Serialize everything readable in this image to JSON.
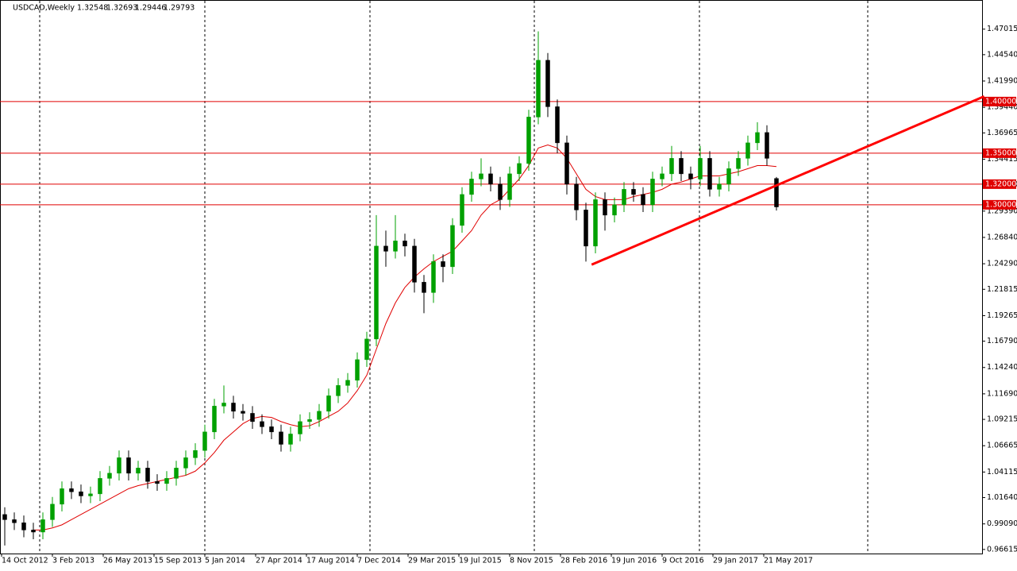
{
  "chart_data": {
    "type": "candlestick",
    "symbol": "USDCAD,Weekly",
    "xlabels": [
      "14 Oct 2012",
      "3 Feb 2013",
      "26 May 2013",
      "15 Sep 2013",
      "5 Jan 2014",
      "27 Apr 2014",
      "17 Aug 2014",
      "7 Dec 2014",
      "29 Mar 2015",
      "19 Jul 2015",
      "8 Nov 2015",
      "28 Feb 2016",
      "19 Jun 2016",
      "9 Oct 2016",
      "29 Jan 2017",
      "21 May 2017"
    ],
    "open": [
      1.0,
      0.995,
      0.992,
      0.985,
      0.983,
      0.995,
      1.01,
      1.025,
      1.022,
      1.018,
      1.02,
      1.035,
      1.04,
      1.055,
      1.04,
      1.045,
      1.032,
      1.03,
      1.035,
      1.045,
      1.055,
      1.062,
      1.08,
      1.105,
      1.108,
      1.1,
      1.098,
      1.09,
      1.085,
      1.08,
      1.068,
      1.078,
      1.09,
      1.092,
      1.1,
      1.115,
      1.125,
      1.13,
      1.15,
      1.17,
      1.26,
      1.255,
      1.265,
      1.26,
      1.225,
      1.215,
      1.245,
      1.24,
      1.28,
      1.31,
      1.325,
      1.33,
      1.32,
      1.305,
      1.33,
      1.34,
      1.385,
      1.44,
      1.395,
      1.36,
      1.32,
      1.295,
      1.26,
      1.305,
      1.29,
      1.3,
      1.315,
      1.31,
      1.3,
      1.325,
      1.33,
      1.345,
      1.33,
      1.325,
      1.345,
      1.315,
      1.32,
      1.335,
      1.345,
      1.36,
      1.37,
      1.32548
    ],
    "high": [
      1.007,
      1.002,
      0.999,
      0.992,
      1.002,
      1.017,
      1.032,
      1.032,
      1.029,
      1.027,
      1.042,
      1.047,
      1.062,
      1.062,
      1.052,
      1.052,
      1.039,
      1.042,
      1.052,
      1.062,
      1.069,
      1.087,
      1.112,
      1.125,
      1.115,
      1.107,
      1.105,
      1.097,
      1.092,
      1.087,
      1.085,
      1.097,
      1.099,
      1.107,
      1.122,
      1.132,
      1.137,
      1.157,
      1.177,
      1.29,
      1.275,
      1.29,
      1.272,
      1.267,
      1.232,
      1.252,
      1.252,
      1.287,
      1.317,
      1.332,
      1.345,
      1.337,
      1.327,
      1.337,
      1.347,
      1.392,
      1.468,
      1.447,
      1.402,
      1.367,
      1.327,
      1.302,
      1.312,
      1.312,
      1.307,
      1.322,
      1.322,
      1.317,
      1.332,
      1.337,
      1.357,
      1.352,
      1.337,
      1.357,
      1.352,
      1.327,
      1.342,
      1.352,
      1.367,
      1.38,
      1.377,
      1.32693
    ],
    "low": [
      0.97,
      0.985,
      0.978,
      0.976,
      0.976,
      0.988,
      1.003,
      1.015,
      1.011,
      1.011,
      1.013,
      1.028,
      1.033,
      1.033,
      1.033,
      1.025,
      1.023,
      1.023,
      1.028,
      1.038,
      1.048,
      1.055,
      1.073,
      1.098,
      1.093,
      1.091,
      1.083,
      1.078,
      1.073,
      1.061,
      1.061,
      1.071,
      1.083,
      1.085,
      1.093,
      1.108,
      1.118,
      1.123,
      1.143,
      1.163,
      1.24,
      1.248,
      1.25,
      1.215,
      1.195,
      1.205,
      1.225,
      1.233,
      1.273,
      1.303,
      1.318,
      1.313,
      1.295,
      1.298,
      1.323,
      1.333,
      1.378,
      1.385,
      1.35,
      1.31,
      1.285,
      1.245,
      1.253,
      1.275,
      1.283,
      1.293,
      1.303,
      1.293,
      1.293,
      1.318,
      1.323,
      1.323,
      1.315,
      1.318,
      1.308,
      1.308,
      1.313,
      1.328,
      1.338,
      1.353,
      1.338,
      1.29446
    ],
    "close": [
      0.995,
      0.992,
      0.985,
      0.983,
      0.995,
      1.01,
      1.025,
      1.022,
      1.018,
      1.02,
      1.035,
      1.04,
      1.055,
      1.04,
      1.045,
      1.032,
      1.03,
      1.035,
      1.045,
      1.055,
      1.062,
      1.08,
      1.105,
      1.108,
      1.1,
      1.098,
      1.09,
      1.085,
      1.08,
      1.068,
      1.078,
      1.09,
      1.092,
      1.1,
      1.115,
      1.125,
      1.13,
      1.15,
      1.17,
      1.26,
      1.255,
      1.265,
      1.26,
      1.225,
      1.215,
      1.245,
      1.24,
      1.28,
      1.31,
      1.325,
      1.33,
      1.32,
      1.305,
      1.33,
      1.34,
      1.385,
      1.44,
      1.395,
      1.36,
      1.32,
      1.295,
      1.26,
      1.305,
      1.29,
      1.3,
      1.315,
      1.31,
      1.3,
      1.325,
      1.33,
      1.345,
      1.33,
      1.325,
      1.345,
      1.315,
      1.32,
      1.335,
      1.345,
      1.36,
      1.37,
      1.345,
      1.29793
    ],
    "ma": [
      null,
      null,
      null,
      0.985,
      0.985,
      0.987,
      0.99,
      0.995,
      1.0,
      1.005,
      1.01,
      1.015,
      1.02,
      1.025,
      1.028,
      1.03,
      1.032,
      1.034,
      1.036,
      1.038,
      1.042,
      1.05,
      1.06,
      1.072,
      1.08,
      1.088,
      1.093,
      1.095,
      1.094,
      1.09,
      1.087,
      1.085,
      1.086,
      1.09,
      1.095,
      1.1,
      1.108,
      1.12,
      1.135,
      1.16,
      1.185,
      1.205,
      1.22,
      1.23,
      1.238,
      1.245,
      1.25,
      1.255,
      1.265,
      1.275,
      1.29,
      1.3,
      1.305,
      1.315,
      1.325,
      1.338,
      1.355,
      1.358,
      1.355,
      1.345,
      1.33,
      1.315,
      1.308,
      1.305,
      1.305,
      1.305,
      1.308,
      1.31,
      1.312,
      1.315,
      1.32,
      1.322,
      1.325,
      1.328,
      1.328,
      1.328,
      1.33,
      1.332,
      1.335,
      1.338,
      1.338,
      1.337
    ],
    "up_color": "#00a000",
    "down_color": "#000000",
    "ma_color": "#e00000",
    "trendline": {
      "x": [
        61.6,
        102.8
      ],
      "y": [
        1.242,
        1.405
      ],
      "color": "#ff0000"
    },
    "levels": [
      {
        "value": 1.4,
        "label": "1.40000"
      },
      {
        "value": 1.35,
        "label": "1.35000"
      },
      {
        "value": 1.32,
        "label": "1.32000"
      },
      {
        "value": 1.3,
        "label": "1.30000"
      }
    ],
    "level_color": "#e00000",
    "ylim": [
      0.9622,
      1.4976
    ],
    "yticks": [
      {
        "value": 1.47015,
        "label": "1.47015"
      },
      {
        "value": 1.4454,
        "label": "1.44540"
      },
      {
        "value": 1.4199,
        "label": "1.41990"
      },
      {
        "value": 1.3944,
        "label": "1.39440"
      },
      {
        "value": 1.36965,
        "label": "1.36965"
      },
      {
        "value": 1.34415,
        "label": "1.34415"
      },
      {
        "value": 1.3194,
        "label": "1.31940"
      },
      {
        "value": 1.2939,
        "label": "1.29390"
      },
      {
        "value": 1.2684,
        "label": "1.26840"
      },
      {
        "value": 1.2429,
        "label": "1.24290"
      },
      {
        "value": 1.21815,
        "label": "1.21815"
      },
      {
        "value": 1.19265,
        "label": "1.19265"
      },
      {
        "value": 1.1679,
        "label": "1.16790"
      },
      {
        "value": 1.1424,
        "label": "1.14240"
      },
      {
        "value": 1.1169,
        "label": "1.11690"
      },
      {
        "value": 1.09215,
        "label": "1.09215"
      },
      {
        "value": 1.06665,
        "label": "1.06665"
      },
      {
        "value": 1.04115,
        "label": "1.04115"
      },
      {
        "value": 1.0164,
        "label": "1.01640"
      },
      {
        "value": 0.9909,
        "label": "0.99090"
      },
      {
        "value": 0.96615,
        "label": "0.96615"
      }
    ]
  }
}
